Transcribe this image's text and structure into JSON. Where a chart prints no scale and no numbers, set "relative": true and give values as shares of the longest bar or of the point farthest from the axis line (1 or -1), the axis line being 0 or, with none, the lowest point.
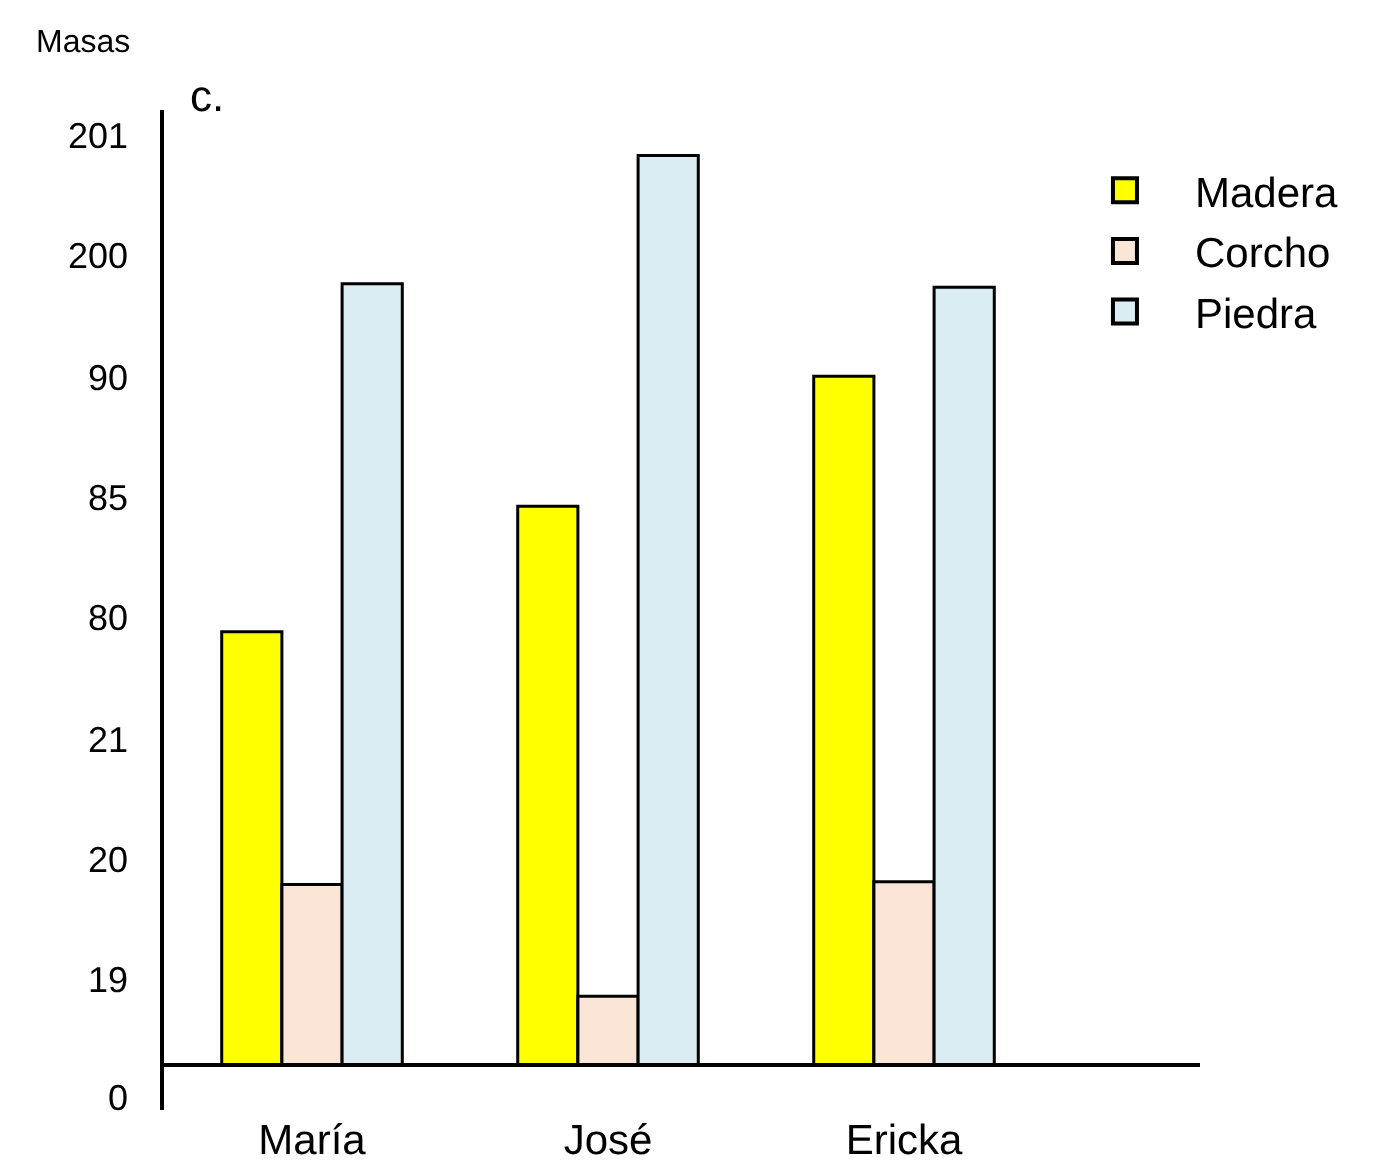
{
  "chart_data": {
    "type": "bar",
    "title": "c.",
    "ylabel": "Masas",
    "relative": true,
    "categories": [
      "María",
      "José",
      "Ericka"
    ],
    "series": [
      {
        "name": "Madera",
        "color": "#ffff00",
        "values": [
          0.476,
          0.614,
          0.757
        ]
      },
      {
        "name": "Corcho",
        "color": "#fbe5d6",
        "values": [
          0.198,
          0.075,
          0.201
        ]
      },
      {
        "name": "Piedra",
        "color": "#daedf3",
        "values": [
          0.859,
          1,
          0.855
        ]
      }
    ],
    "annotations": [
      "0",
      "19",
      "20",
      "21",
      "80",
      "85",
      "90",
      "200",
      "201"
    ],
    "grid": false,
    "legend": "top right"
  }
}
